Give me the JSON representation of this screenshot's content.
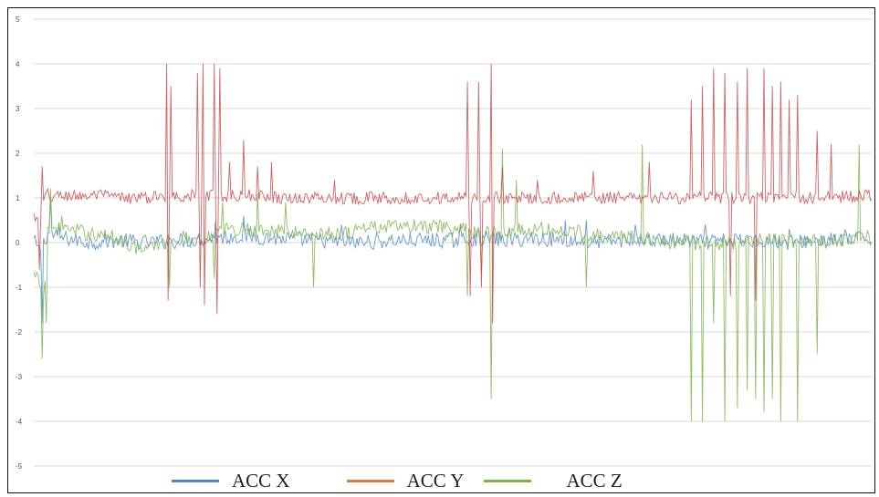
{
  "chart_data": {
    "type": "line",
    "title": "",
    "xlabel": "",
    "ylabel": "",
    "ylim": [
      -5,
      5
    ],
    "yticks": [
      "5",
      "4",
      "3",
      "2",
      "1",
      "0",
      "-1",
      "-2",
      "-3",
      "-4",
      "-5"
    ],
    "xticks": [],
    "grid": true,
    "legend_position": "bottom",
    "n_points": 600,
    "series": [
      {
        "name": "ACC X",
        "color": "#4f87c9",
        "baseline": 0.05,
        "keyframes": [
          [
            0,
            0.05
          ],
          [
            4,
            -0.2
          ],
          [
            10,
            0.2
          ],
          [
            22,
            0.1
          ],
          [
            40,
            0.0
          ],
          [
            60,
            0.05
          ],
          [
            80,
            0.0
          ],
          [
            110,
            0.05
          ],
          [
            130,
            0.1
          ],
          [
            150,
            0.15
          ],
          [
            170,
            0.1
          ],
          [
            200,
            0.05
          ],
          [
            230,
            0.0
          ],
          [
            260,
            0.05
          ],
          [
            300,
            0.05
          ],
          [
            320,
            0.1
          ],
          [
            340,
            0.05
          ],
          [
            360,
            0.1
          ],
          [
            380,
            0.05
          ],
          [
            400,
            0.0
          ],
          [
            420,
            0.05
          ],
          [
            440,
            0.05
          ],
          [
            460,
            0.05
          ],
          [
            480,
            0.0
          ],
          [
            500,
            0.05
          ],
          [
            520,
            0.05
          ],
          [
            540,
            0.0
          ],
          [
            560,
            0.05
          ],
          [
            580,
            0.05
          ],
          [
            599,
            0.1
          ]
        ],
        "spikes": [
          [
            6,
            -1.8
          ],
          [
            12,
            1.0
          ],
          [
            18,
            0.4
          ],
          [
            130,
            0.5
          ],
          [
            150,
            0.6
          ],
          [
            220,
            0.4
          ],
          [
            305,
            0.4
          ],
          [
            340,
            0.3
          ],
          [
            380,
            0.5
          ],
          [
            395,
            0.5
          ],
          [
            430,
            0.4
          ],
          [
            480,
            0.4
          ],
          [
            540,
            0.3
          ],
          [
            580,
            0.3
          ]
        ]
      },
      {
        "name": "ACC Y",
        "color": "#c9494a",
        "baseline": 1.0,
        "keyframes": [
          [
            0,
            0.6
          ],
          [
            4,
            0.4
          ],
          [
            8,
            1.0
          ],
          [
            20,
            1.05
          ],
          [
            50,
            1.05
          ],
          [
            60,
            1.0
          ],
          [
            80,
            1.0
          ],
          [
            100,
            1.05
          ],
          [
            130,
            1.05
          ],
          [
            160,
            1.05
          ],
          [
            180,
            1.0
          ],
          [
            200,
            1.0
          ],
          [
            230,
            1.0
          ],
          [
            260,
            1.0
          ],
          [
            300,
            1.0
          ],
          [
            330,
            1.0
          ],
          [
            360,
            1.0
          ],
          [
            390,
            1.0
          ],
          [
            420,
            1.0
          ],
          [
            440,
            0.95
          ],
          [
            450,
            1.0
          ],
          [
            480,
            1.0
          ],
          [
            500,
            1.0
          ],
          [
            530,
            1.0
          ],
          [
            560,
            1.0
          ],
          [
            599,
            1.05
          ]
        ],
        "spikes": [
          [
            4,
            -0.6
          ],
          [
            6,
            1.7
          ],
          [
            10,
            1.2
          ],
          [
            95,
            4.0
          ],
          [
            96,
            -1.3
          ],
          [
            98,
            3.5
          ],
          [
            117,
            3.8
          ],
          [
            119,
            -1.0
          ],
          [
            121,
            4.0
          ],
          [
            122,
            -1.4
          ],
          [
            129,
            4.0
          ],
          [
            131,
            -1.6
          ],
          [
            133,
            3.9
          ],
          [
            140,
            1.8
          ],
          [
            150,
            2.3
          ],
          [
            160,
            1.7
          ],
          [
            170,
            1.8
          ],
          [
            215,
            1.4
          ],
          [
            310,
            3.6
          ],
          [
            312,
            -1.2
          ],
          [
            318,
            3.6
          ],
          [
            320,
            -1.0
          ],
          [
            327,
            4.0
          ],
          [
            328,
            -1.8
          ],
          [
            335,
            1.7
          ],
          [
            360,
            1.4
          ],
          [
            400,
            1.6
          ],
          [
            440,
            1.8
          ],
          [
            470,
            3.2
          ],
          [
            478,
            3.5
          ],
          [
            486,
            3.9
          ],
          [
            494,
            3.8
          ],
          [
            498,
            -1.2
          ],
          [
            503,
            3.6
          ],
          [
            510,
            3.9
          ],
          [
            516,
            -1.3
          ],
          [
            522,
            3.9
          ],
          [
            528,
            3.5
          ],
          [
            534,
            3.6
          ],
          [
            540,
            3.2
          ],
          [
            546,
            3.3
          ],
          [
            560,
            2.5
          ],
          [
            570,
            2.2
          ]
        ]
      },
      {
        "name": "ACC Z",
        "color": "#7db24b",
        "baseline": 0.15,
        "keyframes": [
          [
            0,
            -0.75
          ],
          [
            4,
            -0.9
          ],
          [
            7,
            -1.3
          ],
          [
            10,
            0.3
          ],
          [
            22,
            0.3
          ],
          [
            40,
            0.2
          ],
          [
            60,
            0.1
          ],
          [
            80,
            -0.2
          ],
          [
            90,
            0.0
          ],
          [
            100,
            0.1
          ],
          [
            120,
            0.1
          ],
          [
            140,
            0.3
          ],
          [
            160,
            0.3
          ],
          [
            190,
            0.2
          ],
          [
            220,
            0.2
          ],
          [
            240,
            0.35
          ],
          [
            280,
            0.35
          ],
          [
            300,
            0.3
          ],
          [
            330,
            0.2
          ],
          [
            360,
            0.3
          ],
          [
            400,
            0.2
          ],
          [
            430,
            0.1
          ],
          [
            460,
            0.0
          ],
          [
            490,
            0.0
          ],
          [
            520,
            0.05
          ],
          [
            550,
            0.05
          ],
          [
            580,
            0.05
          ],
          [
            599,
            0.1
          ]
        ],
        "spikes": [
          [
            6,
            -2.6
          ],
          [
            9,
            -1.8
          ],
          [
            12,
            1.2
          ],
          [
            20,
            0.6
          ],
          [
            97,
            -1.0
          ],
          [
            129,
            -0.8
          ],
          [
            135,
            0.9
          ],
          [
            160,
            1.1
          ],
          [
            180,
            0.9
          ],
          [
            200,
            -1.0
          ],
          [
            310,
            -1.2
          ],
          [
            320,
            -0.7
          ],
          [
            327,
            -3.5
          ],
          [
            335,
            2.1
          ],
          [
            345,
            1.4
          ],
          [
            395,
            -1.0
          ],
          [
            435,
            2.2
          ],
          [
            470,
            -4.0
          ],
          [
            478,
            -4.0
          ],
          [
            486,
            -1.8
          ],
          [
            494,
            -4.0
          ],
          [
            503,
            -3.7
          ],
          [
            510,
            -3.3
          ],
          [
            516,
            -3.5
          ],
          [
            522,
            -3.8
          ],
          [
            528,
            -3.5
          ],
          [
            534,
            -4.0
          ],
          [
            546,
            -4.0
          ],
          [
            560,
            -2.5
          ],
          [
            590,
            2.2
          ]
        ]
      }
    ]
  }
}
